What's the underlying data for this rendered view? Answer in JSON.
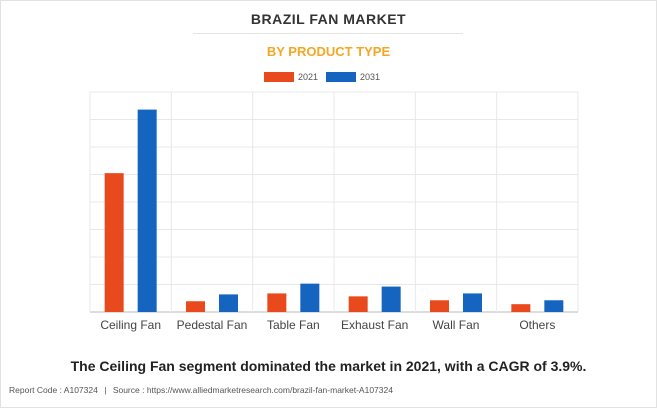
{
  "title": "BRAZIL FAN MARKET",
  "subtitle": "BY PRODUCT TYPE",
  "subtitle_color": "#f5a623",
  "caption": "The Ceiling Fan segment dominated the market in 2021, with a CAGR of 3.9%.",
  "footer": {
    "report_code": "Report Code : A107324",
    "separator": "|",
    "source": "Source : https://www.alliedmarketresearch.com/brazil-fan-market-A107324"
  },
  "chart_data": {
    "type": "bar",
    "title": "BRAZIL FAN MARKET",
    "subtitle": "BY PRODUCT TYPE",
    "categories": [
      "Ceiling Fan",
      "Pedestal Fan",
      "Table Fan",
      "Exhaust Fan",
      "Wall Fan",
      "Others"
    ],
    "series": [
      {
        "name": "2021",
        "color": "#e8491d",
        "values": [
          142,
          11,
          19,
          16,
          12,
          8
        ]
      },
      {
        "name": "2031",
        "color": "#1565c0",
        "values": [
          207,
          18,
          29,
          26,
          19,
          12
        ]
      }
    ],
    "ylim": [
      0,
      225
    ],
    "y_gridlines": 8,
    "y_tick_labels_visible": false,
    "grid": true,
    "legend_position": "top-center"
  }
}
